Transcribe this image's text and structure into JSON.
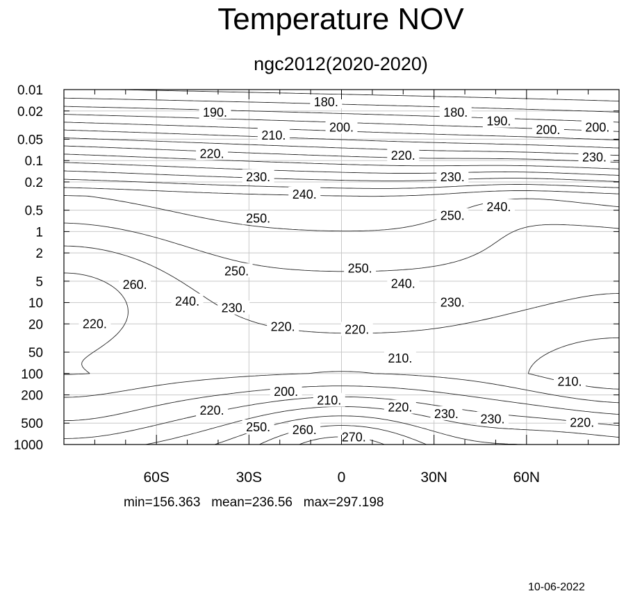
{
  "chart_data": {
    "type": "contour",
    "title": "Temperature NOV",
    "subtitle": "ngc2012(2020-2020)",
    "xlabel": "",
    "ylabel": "",
    "x_ticks": [
      "60S",
      "30S",
      "0",
      "30N",
      "60N"
    ],
    "x_tick_values": [
      -60,
      -30,
      0,
      30,
      60
    ],
    "xlim": [
      -90,
      90
    ],
    "y_ticks": [
      "0.01",
      "0.02",
      "0.05",
      "0.1",
      "0.2",
      "0.5",
      "1",
      "2",
      "5",
      "10",
      "20",
      "50",
      "100",
      "200",
      "500",
      "1000"
    ],
    "y_tick_values": [
      0.01,
      0.02,
      0.05,
      0.1,
      0.2,
      0.5,
      1,
      2,
      5,
      10,
      20,
      50,
      100,
      200,
      500,
      1000
    ],
    "ylim": [
      0.01,
      1000
    ],
    "y_scale": "log",
    "y_inverted": true,
    "grid": true,
    "contour_interval": 5,
    "contour_labels": [
      {
        "text": "180.",
        "lat": -5,
        "p": 0.015
      },
      {
        "text": "190.",
        "lat": -41,
        "p": 0.021
      },
      {
        "text": "180.",
        "lat": 37,
        "p": 0.021
      },
      {
        "text": "190.",
        "lat": 51,
        "p": 0.028
      },
      {
        "text": "200.",
        "lat": 0,
        "p": 0.034
      },
      {
        "text": "210.",
        "lat": -22,
        "p": 0.044
      },
      {
        "text": "200.",
        "lat": 67,
        "p": 0.037
      },
      {
        "text": "200.",
        "lat": 83,
        "p": 0.034
      },
      {
        "text": "220.",
        "lat": -42,
        "p": 0.08
      },
      {
        "text": "220.",
        "lat": 20,
        "p": 0.085
      },
      {
        "text": "230.",
        "lat": 82,
        "p": 0.09
      },
      {
        "text": "230.",
        "lat": -27,
        "p": 0.17
      },
      {
        "text": "230.",
        "lat": 36,
        "p": 0.17
      },
      {
        "text": "240.",
        "lat": -12,
        "p": 0.3
      },
      {
        "text": "240.",
        "lat": 51,
        "p": 0.45
      },
      {
        "text": "250.",
        "lat": -27,
        "p": 0.65
      },
      {
        "text": "250.",
        "lat": 36,
        "p": 0.6
      },
      {
        "text": "250.",
        "lat": -34,
        "p": 3.6
      },
      {
        "text": "250.",
        "lat": 6,
        "p": 3.3
      },
      {
        "text": "260.",
        "lat": -67,
        "p": 5.6
      },
      {
        "text": "240.",
        "lat": 20,
        "p": 5.4
      },
      {
        "text": "240.",
        "lat": -50,
        "p": 9.6
      },
      {
        "text": "230.",
        "lat": -35,
        "p": 12
      },
      {
        "text": "230.",
        "lat": 36,
        "p": 10
      },
      {
        "text": "220.",
        "lat": -80,
        "p": 20
      },
      {
        "text": "220.",
        "lat": -19,
        "p": 22
      },
      {
        "text": "220.",
        "lat": 5,
        "p": 24
      },
      {
        "text": "210.",
        "lat": 19,
        "p": 61
      },
      {
        "text": "210.",
        "lat": 74,
        "p": 130
      },
      {
        "text": "200.",
        "lat": -18,
        "p": 180
      },
      {
        "text": "210.",
        "lat": -4,
        "p": 240
      },
      {
        "text": "220.",
        "lat": 19,
        "p": 300
      },
      {
        "text": "220.",
        "lat": -42,
        "p": 330
      },
      {
        "text": "230.",
        "lat": 34,
        "p": 370
      },
      {
        "text": "230.",
        "lat": 49,
        "p": 440
      },
      {
        "text": "220.",
        "lat": 78,
        "p": 490
      },
      {
        "text": "250.",
        "lat": -27,
        "p": 570
      },
      {
        "text": "260.",
        "lat": -12,
        "p": 620
      },
      {
        "text": "270.",
        "lat": 4,
        "p": 790
      }
    ]
  },
  "stats": {
    "text": "min=156.363   mean=236.56   max=297.198"
  },
  "footer": {
    "date": "10-06-2022"
  }
}
